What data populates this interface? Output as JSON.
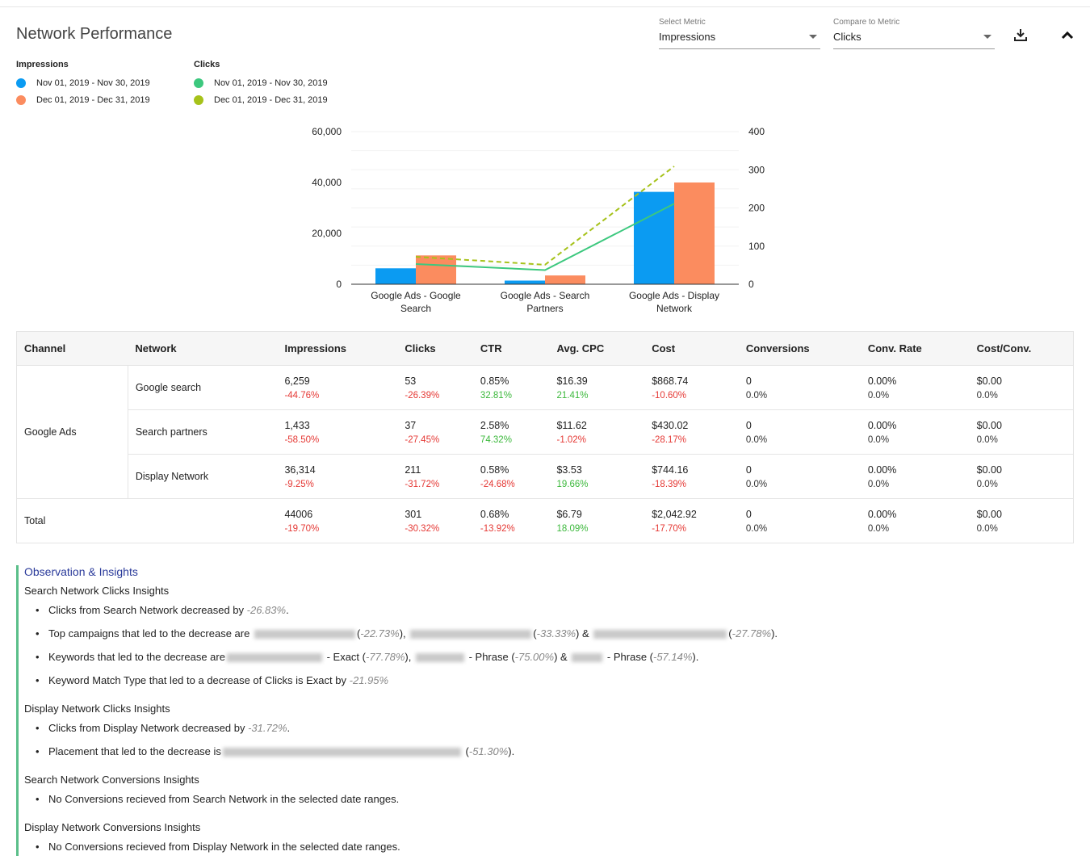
{
  "header": {
    "title": "Network Performance",
    "select_metric": {
      "label": "Select Metric",
      "value": "Impressions"
    },
    "compare_metric": {
      "label": "Compare to Metric",
      "value": "Clicks"
    },
    "icons": [
      "download-icon",
      "chevron-up-icon"
    ]
  },
  "legend": {
    "impressions": {
      "title": "Impressions",
      "items": [
        {
          "label": "Nov 01, 2019 - Nov 30, 2019",
          "color": "#0b9bf2"
        },
        {
          "label": "Dec 01, 2019 - Dec 31, 2019",
          "color": "#fb8c5f"
        }
      ]
    },
    "clicks": {
      "title": "Clicks",
      "items": [
        {
          "label": "Nov 01, 2019 - Nov 30, 2019",
          "color": "#3cc87e"
        },
        {
          "label": "Dec 01, 2019 - Dec 31, 2019",
          "color": "#a6c21a"
        }
      ]
    }
  },
  "chart_data": {
    "type": "bar",
    "categories": [
      "Google Ads - Google Search",
      "Google Ads - Search Partners",
      "Google Ads - Display Network"
    ],
    "series": [
      {
        "name": "Impressions Nov 01, 2019 - Nov 30, 2019",
        "type": "bar",
        "axis": "left",
        "values": [
          6259,
          1433,
          36314
        ],
        "color": "#0b9bf2"
      },
      {
        "name": "Impressions Dec 01, 2019 - Dec 31, 2019",
        "type": "bar",
        "axis": "left",
        "values": [
          11330,
          3450,
          40000
        ],
        "color": "#fb8c5f"
      },
      {
        "name": "Clicks Nov 01, 2019 - Nov 30, 2019",
        "type": "line",
        "axis": "right",
        "values": [
          53,
          37,
          211
        ],
        "color": "#3cc87e"
      },
      {
        "name": "Clicks Dec 01, 2019 - Dec 31, 2019",
        "type": "line",
        "dashed": true,
        "axis": "right",
        "values": [
          72,
          51,
          309
        ],
        "color": "#a6c21a"
      }
    ],
    "ylim": [
      0,
      60000
    ],
    "yticks": [
      "0",
      "20,000",
      "40,000",
      "60,000"
    ],
    "y2lim": [
      0,
      400
    ],
    "y2ticks": [
      "0",
      "100",
      "200",
      "300",
      "400"
    ],
    "grid": true
  },
  "table": {
    "columns": [
      "Channel",
      "Network",
      "Impressions",
      "Clicks",
      "CTR",
      "Avg. CPC",
      "Cost",
      "Conversions",
      "Conv. Rate",
      "Cost/Conv."
    ],
    "channel": "Google Ads",
    "rows": [
      {
        "network": "Google search",
        "cells": [
          [
            "6,259",
            "-44.76%",
            "neg"
          ],
          [
            "53",
            "-26.39%",
            "neg"
          ],
          [
            "0.85%",
            "32.81%",
            "pos"
          ],
          [
            "$16.39",
            "21.41%",
            "pos"
          ],
          [
            "$868.74",
            "-10.60%",
            "neg"
          ],
          [
            "0",
            "0.0%",
            "neu"
          ],
          [
            "0.00%",
            "0.0%",
            "neu"
          ],
          [
            "$0.00",
            "0.0%",
            "neu"
          ]
        ]
      },
      {
        "network": "Search partners",
        "cells": [
          [
            "1,433",
            "-58.50%",
            "neg"
          ],
          [
            "37",
            "-27.45%",
            "neg"
          ],
          [
            "2.58%",
            "74.32%",
            "pos"
          ],
          [
            "$11.62",
            "-1.02%",
            "neg"
          ],
          [
            "$430.02",
            "-28.17%",
            "neg"
          ],
          [
            "0",
            "0.0%",
            "neu"
          ],
          [
            "0.00%",
            "0.0%",
            "neu"
          ],
          [
            "$0.00",
            "0.0%",
            "neu"
          ]
        ]
      },
      {
        "network": "Display Network",
        "cells": [
          [
            "36,314",
            "-9.25%",
            "neg"
          ],
          [
            "211",
            "-31.72%",
            "neg"
          ],
          [
            "0.58%",
            "-24.68%",
            "neg"
          ],
          [
            "$3.53",
            "19.66%",
            "pos"
          ],
          [
            "$744.16",
            "-18.39%",
            "neg"
          ],
          [
            "0",
            "0.0%",
            "neu"
          ],
          [
            "0.00%",
            "0.0%",
            "neu"
          ],
          [
            "$0.00",
            "0.0%",
            "neu"
          ]
        ]
      }
    ],
    "total": {
      "label": "Total",
      "cells": [
        [
          "44006",
          "-19.70%",
          "neg"
        ],
        [
          "301",
          "-30.32%",
          "neg"
        ],
        [
          "0.68%",
          "-13.92%",
          "neg"
        ],
        [
          "$6.79",
          "18.09%",
          "pos"
        ],
        [
          "$2,042.92",
          "-17.70%",
          "neg"
        ],
        [
          "0",
          "0.0%",
          "neu"
        ],
        [
          "0.00%",
          "0.0%",
          "neu"
        ],
        [
          "$0.00",
          "0.0%",
          "neu"
        ]
      ]
    }
  },
  "insights": {
    "title": "Observation & Insights",
    "s1": {
      "title": "Search Network Clicks Insights",
      "b1": {
        "t1": "Clicks from Search Network decreased by ",
        "p1": "-26.83%",
        "t2": "."
      },
      "b2": {
        "t1": "Top campaigns that led to the decrease are ",
        "p1": "-22.73%",
        "p2": "-33.33%",
        "p3": "-27.78%",
        "sep1": "),",
        "sep2": ") &",
        "end": ")."
      },
      "b3": {
        "t1": "Keywords that led to the decrease are",
        "m1": " - Exact (",
        "p1": "-77.78%",
        "m2": " - Phrase (",
        "p2": "-75.00%",
        "m3": " - Phrase (",
        "p3": "-57.14%"
      },
      "b4": {
        "t1": "Keyword Match Type that led to a decrease of Clicks is Exact by ",
        "p1": "-21.95%"
      }
    },
    "s2": {
      "title": "Display Network Clicks Insights",
      "b1": {
        "t1": "Clicks from Display Network decreased by ",
        "p1": "-31.72%",
        "t2": "."
      },
      "b2": {
        "t1": "Placement that led to the decrease is",
        "p1": "-51.30%"
      }
    },
    "s3": {
      "title": "Search Network Conversions Insights",
      "b1": "No Conversions recieved from Search Network in the selected date ranges."
    },
    "s4": {
      "title": "Display Network Conversions Insights",
      "b1": "No Conversions recieved from Display Network in the selected date ranges."
    }
  }
}
